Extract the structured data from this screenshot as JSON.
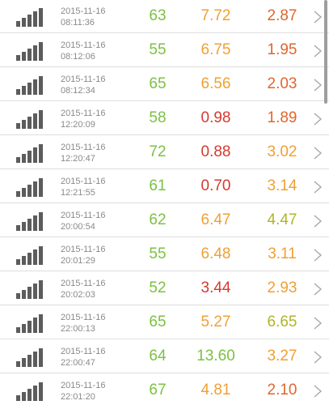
{
  "colors": {
    "green": "#7cc142",
    "orange": "#f0a034",
    "red": "#d63a2e",
    "red_orange": "#e0662e",
    "olive": "#b0b52a",
    "signal_bars": "#5c5c5c",
    "chevron": "#a8a8a8",
    "divider": "#dedede"
  },
  "rows": [
    {
      "date": "2015-11-16",
      "time": "08:11:36",
      "v1": "63",
      "c1": "green",
      "v2": "7.72",
      "c2": "orange",
      "v3": "2.87",
      "c3": "red_orange"
    },
    {
      "date": "2015-11-16",
      "time": "08:12:06",
      "v1": "55",
      "c1": "green",
      "v2": "6.75",
      "c2": "orange",
      "v3": "1.95",
      "c3": "red_orange"
    },
    {
      "date": "2015-11-16",
      "time": "08:12:34",
      "v1": "65",
      "c1": "green",
      "v2": "6.56",
      "c2": "orange",
      "v3": "2.03",
      "c3": "red_orange"
    },
    {
      "date": "2015-11-16",
      "time": "12:20:09",
      "v1": "58",
      "c1": "green",
      "v2": "0.98",
      "c2": "red",
      "v3": "1.89",
      "c3": "red_orange"
    },
    {
      "date": "2015-11-16",
      "time": "12:20:47",
      "v1": "72",
      "c1": "green",
      "v2": "0.88",
      "c2": "red",
      "v3": "3.02",
      "c3": "orange"
    },
    {
      "date": "2015-11-16",
      "time": "12:21:55",
      "v1": "61",
      "c1": "green",
      "v2": "0.70",
      "c2": "red",
      "v3": "3.14",
      "c3": "orange"
    },
    {
      "date": "2015-11-16",
      "time": "20:00:54",
      "v1": "62",
      "c1": "green",
      "v2": "6.47",
      "c2": "orange",
      "v3": "4.47",
      "c3": "olive"
    },
    {
      "date": "2015-11-16",
      "time": "20:01:29",
      "v1": "55",
      "c1": "green",
      "v2": "6.48",
      "c2": "orange",
      "v3": "3.11",
      "c3": "orange"
    },
    {
      "date": "2015-11-16",
      "time": "20:02:03",
      "v1": "52",
      "c1": "green",
      "v2": "3.44",
      "c2": "red",
      "v3": "2.93",
      "c3": "orange"
    },
    {
      "date": "2015-11-16",
      "time": "22:00:13",
      "v1": "65",
      "c1": "green",
      "v2": "5.27",
      "c2": "orange",
      "v3": "6.65",
      "c3": "olive"
    },
    {
      "date": "2015-11-16",
      "time": "22:00:47",
      "v1": "64",
      "c1": "green",
      "v2": "13.60",
      "c2": "green",
      "v3": "3.27",
      "c3": "orange"
    },
    {
      "date": "2015-11-16",
      "time": "22:01:20",
      "v1": "67",
      "c1": "green",
      "v2": "4.81",
      "c2": "orange",
      "v3": "2.10",
      "c3": "red_orange"
    }
  ]
}
